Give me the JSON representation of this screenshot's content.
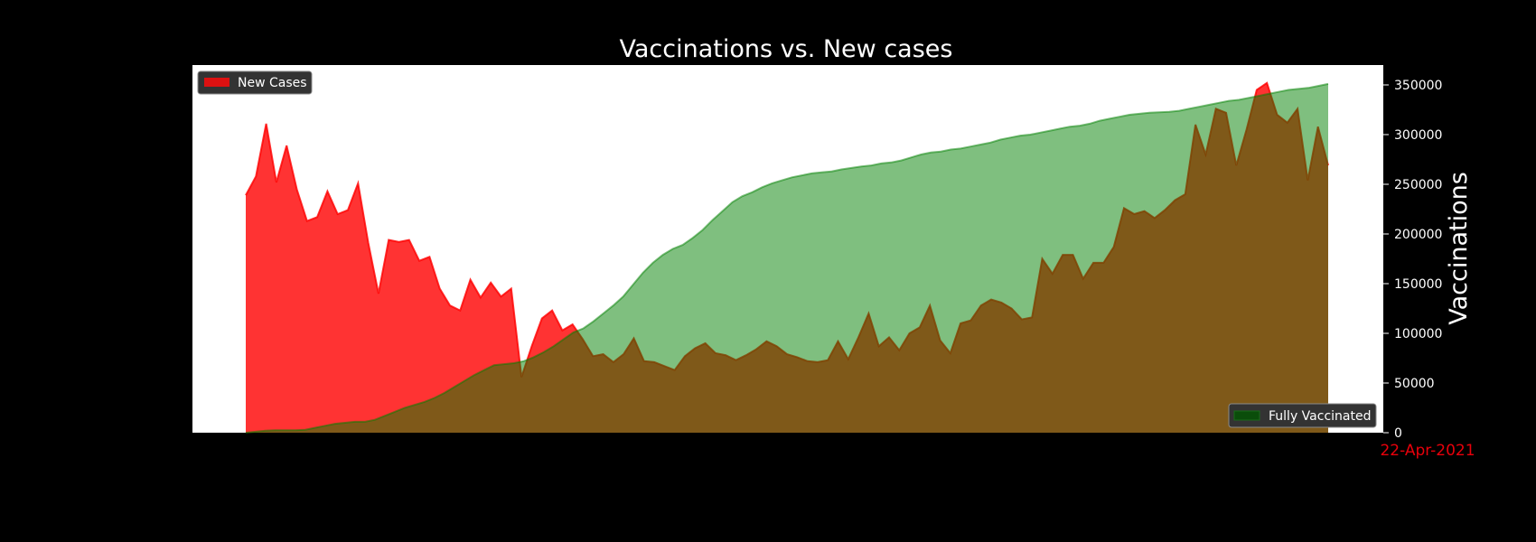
{
  "chart_data": {
    "type": "area",
    "title": "Vaccinations vs. New cases",
    "ylabel": "Vaccinations",
    "ylim": [
      0,
      370000
    ],
    "yticks": [
      0,
      50000,
      100000,
      150000,
      200000,
      250000,
      300000,
      350000
    ],
    "date_label": "22-Apr-2021",
    "date_label_color": "#e8000b",
    "legend_position": [
      "upper left",
      "lower right"
    ],
    "series": [
      {
        "name": "New Cases",
        "color": "#ff0000",
        "values": [
          239000,
          258000,
          311000,
          252000,
          289000,
          245000,
          213000,
          217000,
          243000,
          220000,
          224000,
          251000,
          191000,
          140000,
          194000,
          192000,
          194000,
          173000,
          177000,
          145000,
          128000,
          123000,
          154000,
          136000,
          151000,
          137000,
          145000,
          56000,
          87000,
          115000,
          123000,
          103000,
          109000,
          94000,
          77000,
          79000,
          71000,
          79000,
          95000,
          72000,
          71000,
          67000,
          63000,
          77000,
          85000,
          90000,
          80000,
          78000,
          73000,
          78000,
          84000,
          92000,
          87000,
          79000,
          76000,
          72000,
          71000,
          73000,
          92000,
          74000,
          96000,
          120000,
          87000,
          96000,
          83000,
          100000,
          106000,
          128000,
          93000,
          80000,
          110000,
          113000,
          128000,
          134000,
          131000,
          125000,
          114000,
          116000,
          175000,
          160000,
          179000,
          179000,
          155000,
          171000,
          171000,
          187000,
          226000,
          220000,
          223000,
          216000,
          224000,
          234000,
          240000,
          310000,
          280000,
          326000,
          322000,
          269000,
          305000,
          345000,
          352000,
          320000,
          312000,
          326000,
          254000,
          308000,
          269000
        ]
      },
      {
        "name": "Fully Vaccinated",
        "color": "#008000",
        "values": [
          0,
          1000,
          2000,
          2500,
          2500,
          2500,
          3000,
          5000,
          7000,
          9000,
          10000,
          11000,
          11000,
          13000,
          17000,
          21000,
          25000,
          28000,
          31000,
          35000,
          40000,
          46000,
          52000,
          58000,
          63000,
          68000,
          69000,
          70000,
          72000,
          76000,
          81000,
          87000,
          94000,
          101000,
          105000,
          112000,
          120000,
          128000,
          137000,
          149000,
          161000,
          171000,
          179000,
          185000,
          189000,
          196000,
          204000,
          214000,
          223000,
          232000,
          238000,
          242000,
          247000,
          251000,
          254000,
          257000,
          259000,
          261000,
          262000,
          263000,
          265000,
          266500,
          268000,
          269000,
          271000,
          272000,
          274000,
          277000,
          280000,
          282000,
          283000,
          285000,
          286000,
          288000,
          290000,
          292000,
          295000,
          297000,
          299000,
          300000,
          302000,
          304000,
          306000,
          308000,
          309000,
          311000,
          314000,
          316000,
          318000,
          320000,
          321000,
          322000,
          322500,
          323000,
          324000,
          326000,
          328000,
          330000,
          332000,
          334000,
          335000,
          337000,
          339000,
          341000,
          343000,
          345000,
          346000,
          347000,
          349000,
          351000
        ]
      }
    ]
  }
}
